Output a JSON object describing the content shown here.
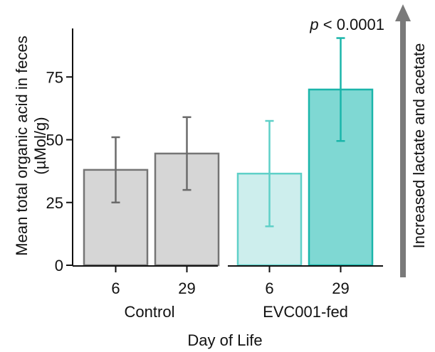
{
  "chart_data": {
    "type": "bar",
    "ylabel_line1": "Mean total organic acid in feces",
    "ylabel_line2": "(µMol/g)",
    "xlabel": "Day of Life",
    "ylim": [
      0,
      95
    ],
    "yticks": [
      0,
      25,
      50,
      75
    ],
    "ytick_labels": [
      "0",
      "25",
      "50",
      "75"
    ],
    "groups": [
      {
        "name": "Control",
        "bars": [
          {
            "category": "6",
            "value": 38,
            "err_low": 25,
            "err_high": 51,
            "fill": "#d6d6d6",
            "stroke": "#757575",
            "err_color": "#6b6b6b"
          },
          {
            "category": "29",
            "value": 44.5,
            "err_low": 30,
            "err_high": 59,
            "fill": "#d6d6d6",
            "stroke": "#757575",
            "err_color": "#6b6b6b"
          }
        ]
      },
      {
        "name": "EVC001-fed",
        "bars": [
          {
            "category": "6",
            "value": 36.5,
            "err_low": 15.5,
            "err_high": 57.5,
            "fill": "#cdeeed",
            "stroke": "#5fd0c8",
            "err_color": "#5fd0c8"
          },
          {
            "category": "29",
            "value": 70,
            "err_low": 49.5,
            "err_high": 90.5,
            "fill": "#7fd8d3",
            "stroke": "#1ab5aa",
            "err_color": "#1ab5aa"
          }
        ]
      }
    ],
    "annotation": {
      "italic": "p",
      "rest": " < 0.0001"
    },
    "arrow_label": "Increased lactate and acetate",
    "arrow_color": "#7a7a7a"
  }
}
